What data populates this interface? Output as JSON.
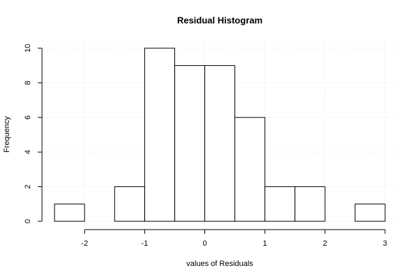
{
  "chart_data": {
    "type": "histogram",
    "title": "Residual Histogram",
    "x_label": "values of Residuals",
    "y_label": "Frequency",
    "bins": [
      -2.5,
      -2,
      -1.5,
      -1,
      -0.5,
      0,
      0.5,
      1,
      1.5,
      2,
      2.5,
      3
    ],
    "values": [
      1,
      0,
      2,
      10,
      9,
      9,
      6,
      2,
      2,
      0,
      1
    ],
    "color": "#ffffff",
    "xlim": [
      -2.72,
      3.22
    ],
    "xticks": [
      -2,
      -1,
      0,
      1,
      2,
      3
    ],
    "ylim": [
      -0.4,
      10.4
    ],
    "yticks": [
      0,
      2,
      4,
      6,
      8,
      10
    ],
    "grid": true
  }
}
